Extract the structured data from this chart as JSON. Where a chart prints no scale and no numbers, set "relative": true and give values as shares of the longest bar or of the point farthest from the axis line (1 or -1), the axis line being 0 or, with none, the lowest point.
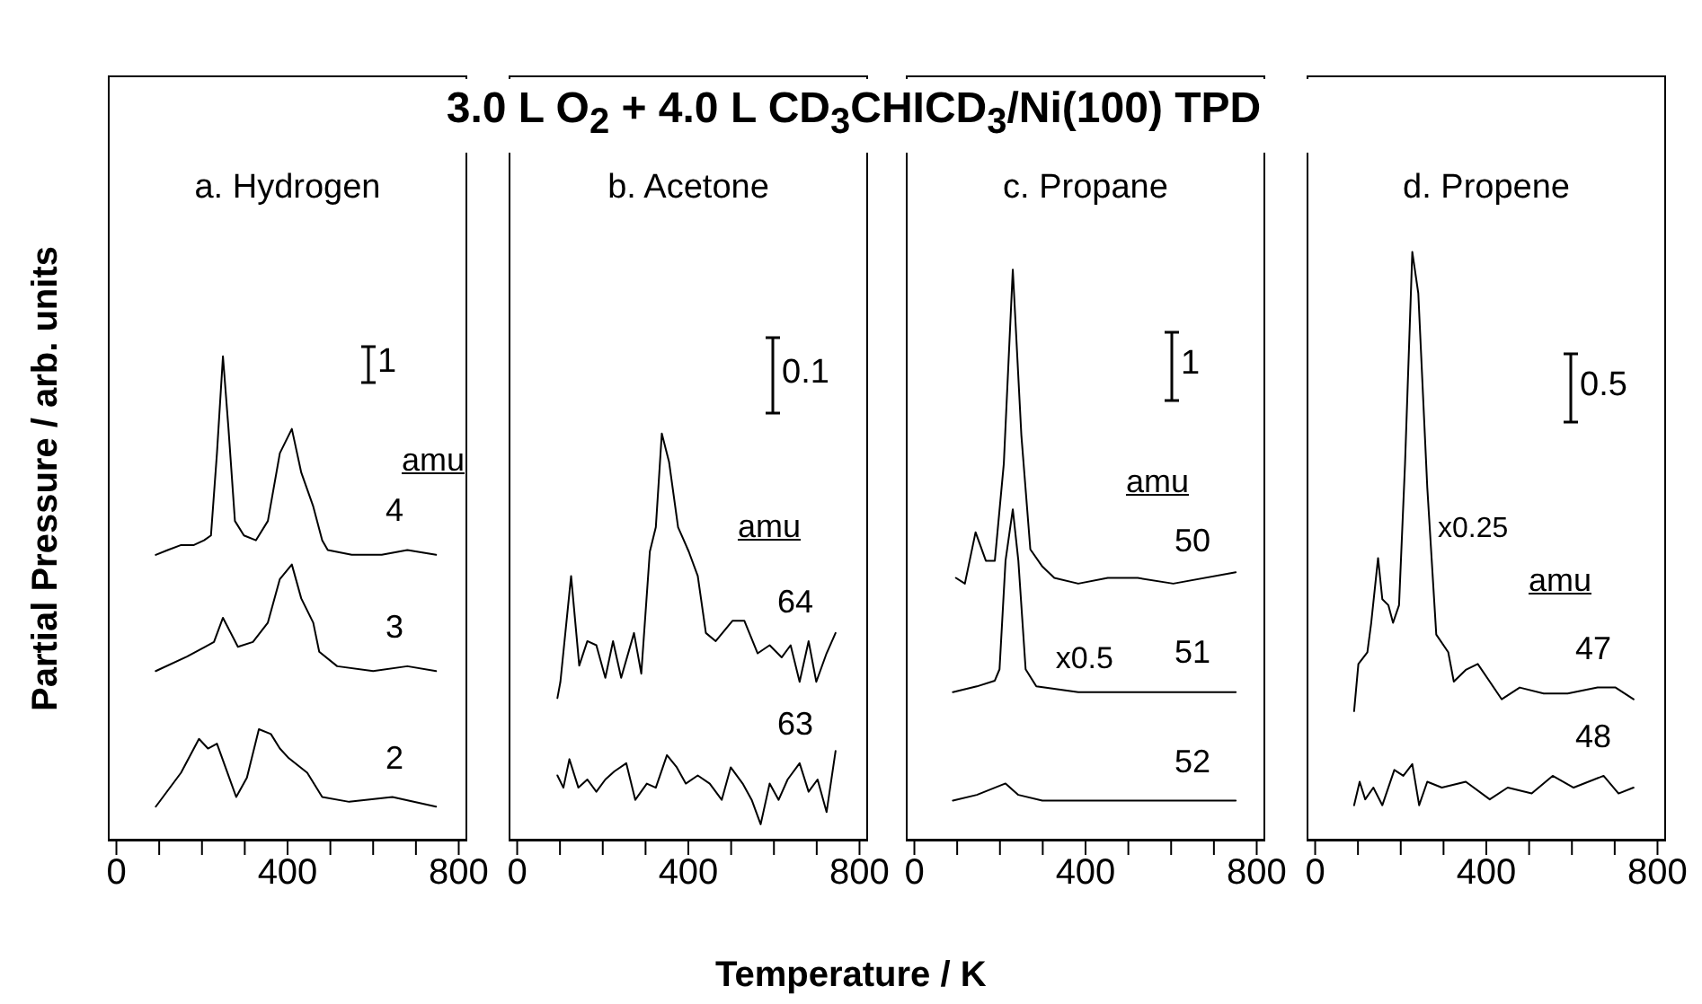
{
  "chart_data": [
    {
      "type": "line",
      "title": "a. Hydrogen",
      "ylabel": "Partial Pressure / arb. units",
      "relative": true,
      "legend": false,
      "grid": false,
      "marker": "none",
      "line_style": "solid",
      "xlim": [
        -20,
        820
      ],
      "xticks": [
        0,
        {
          "value": 100,
          "label": null
        },
        {
          "value": 200,
          "label": null
        },
        {
          "value": 300,
          "label": null
        },
        400,
        {
          "value": 500,
          "label": null
        },
        {
          "value": 600,
          "label": null
        },
        {
          "value": 700,
          "label": null
        },
        800
      ],
      "annotations": [
        "3.0 L O$_{2}$ + 4.0 L CD$_{3}$CHICD$_{3}$/Ni(100) TPD",
        "1",
        "amu"
      ],
      "series": [
        {
          "name": "4",
          "color": "#000000",
          "x": [
            92,
            120,
            150,
            180,
            205,
            221,
            235,
            249,
            262,
            277,
            298,
            326,
            354,
            382,
            410,
            432,
            460,
            481,
            494,
            550,
            620,
            680,
            747
          ],
          "values": [
            0.59,
            0.6,
            0.61,
            0.61,
            0.62,
            0.63,
            0.8,
            1.0,
            0.85,
            0.66,
            0.63,
            0.62,
            0.66,
            0.8,
            0.85,
            0.76,
            0.69,
            0.62,
            0.6,
            0.59,
            0.59,
            0.6,
            0.59
          ]
        },
        {
          "name": "3",
          "color": "#000000",
          "x": [
            92,
            165,
            207,
            228,
            249,
            284,
            319,
            354,
            382,
            410,
            432,
            460,
            474,
            516,
            600,
            680,
            747
          ],
          "values": [
            0.35,
            0.38,
            0.4,
            0.41,
            0.46,
            0.4,
            0.41,
            0.45,
            0.54,
            0.57,
            0.5,
            0.45,
            0.39,
            0.36,
            0.35,
            0.36,
            0.35
          ]
        },
        {
          "name": "2",
          "color": "#000000",
          "x": [
            92,
            151,
            193,
            214,
            235,
            280,
            305,
            333,
            361,
            382,
            403,
            446,
            481,
            544,
            645,
            747
          ],
          "values": [
            0.07,
            0.14,
            0.21,
            0.19,
            0.2,
            0.09,
            0.13,
            0.23,
            0.22,
            0.19,
            0.17,
            0.14,
            0.09,
            0.08,
            0.09,
            0.07
          ]
        }
      ]
    },
    {
      "type": "line",
      "title": "b. Acetone",
      "xlabel": "Temperature / K",
      "relative": true,
      "legend": false,
      "grid": false,
      "marker": "none",
      "line_style": "solid",
      "xlim": [
        -20,
        820
      ],
      "xticks": [
        0,
        {
          "value": 100,
          "label": null
        },
        {
          "value": 200,
          "label": null
        },
        {
          "value": 300,
          "label": null
        },
        400,
        {
          "value": 500,
          "label": null
        },
        {
          "value": 600,
          "label": null
        },
        {
          "value": 700,
          "label": null
        },
        800
      ],
      "annotations": [
        "0.1",
        "amu"
      ],
      "series": [
        {
          "name": "64",
          "color": "#000000",
          "x": [
            94,
            101,
            126,
            145,
            164,
            185,
            206,
            224,
            243,
            273,
            290,
            310,
            324,
            338,
            355,
            376,
            401,
            422,
            441,
            464,
            503,
            531,
            562,
            590,
            618,
            639,
            660,
            681,
            699,
            723,
            744
          ],
          "values": [
            0.35,
            0.39,
            0.65,
            0.43,
            0.49,
            0.48,
            0.4,
            0.49,
            0.4,
            0.51,
            0.41,
            0.71,
            0.77,
            1.0,
            0.93,
            0.77,
            0.71,
            0.65,
            0.51,
            0.49,
            0.54,
            0.54,
            0.46,
            0.48,
            0.45,
            0.48,
            0.39,
            0.49,
            0.39,
            0.46,
            0.51
          ]
        },
        {
          "name": "63",
          "color": "#000000",
          "x": [
            94,
            108,
            122,
            143,
            164,
            185,
            206,
            227,
            255,
            276,
            303,
            324,
            350,
            373,
            394,
            422,
            450,
            478,
            499,
            527,
            548,
            569,
            590,
            611,
            632,
            660,
            681,
            702,
            723,
            744
          ],
          "values": [
            0.16,
            0.13,
            0.2,
            0.13,
            0.15,
            0.12,
            0.15,
            0.17,
            0.19,
            0.1,
            0.14,
            0.13,
            0.21,
            0.18,
            0.14,
            0.16,
            0.14,
            0.1,
            0.18,
            0.14,
            0.1,
            0.04,
            0.14,
            0.1,
            0.15,
            0.19,
            0.12,
            0.15,
            0.07,
            0.22
          ]
        }
      ]
    },
    {
      "type": "line",
      "title": "c. Propane",
      "relative": true,
      "legend": false,
      "grid": false,
      "marker": "none",
      "line_style": "solid",
      "xlim": [
        -20,
        820
      ],
      "xticks": [
        0,
        {
          "value": 100,
          "label": null
        },
        {
          "value": 200,
          "label": null
        },
        {
          "value": 300,
          "label": null
        },
        400,
        {
          "value": 500,
          "label": null
        },
        {
          "value": 600,
          "label": null
        },
        {
          "value": 700,
          "label": null
        },
        800
      ],
      "annotations": [
        "1",
        "amu",
        {
          "text": "x0.5",
          "x": 330,
          "y": 0.26
        }
      ],
      "series": [
        {
          "name": "50",
          "color": "#000000",
          "x": [
            97,
            118,
            143,
            167,
            188,
            209,
            230,
            250,
            271,
            299,
            327,
            383,
            452,
            522,
            605,
            751
          ],
          "values": [
            0.46,
            0.45,
            0.54,
            0.49,
            0.49,
            0.66,
            1.0,
            0.71,
            0.51,
            0.48,
            0.46,
            0.45,
            0.46,
            0.46,
            0.45,
            0.47
          ]
        },
        {
          "name": "51",
          "color": "#000000",
          "x": [
            90,
            146,
            188,
            199,
            213,
            230,
            243,
            260,
            285,
            383,
            522,
            751
          ],
          "values": [
            0.26,
            0.27,
            0.28,
            0.3,
            0.49,
            0.58,
            0.49,
            0.3,
            0.27,
            0.26,
            0.26,
            0.26
          ]
        },
        {
          "name": "52",
          "color": "#000000",
          "x": [
            90,
            146,
            213,
            243,
            299,
            383,
            522,
            633,
            751
          ],
          "values": [
            0.07,
            0.08,
            0.1,
            0.08,
            0.07,
            0.07,
            0.07,
            0.07,
            0.07
          ]
        }
      ]
    },
    {
      "type": "line",
      "title": "d. Propene",
      "relative": true,
      "legend": false,
      "grid": false,
      "marker": "none",
      "line_style": "solid",
      "xlim": [
        -20,
        820
      ],
      "xticks": [
        0,
        {
          "value": 100,
          "label": null
        },
        {
          "value": 200,
          "label": null
        },
        {
          "value": 300,
          "label": null
        },
        400,
        {
          "value": 500,
          "label": null
        },
        {
          "value": 600,
          "label": null
        },
        {
          "value": 700,
          "label": null
        },
        800
      ],
      "annotations": [
        "0.5",
        "amu",
        "x0.25"
      ],
      "series": [
        {
          "name": "47",
          "color": "#000000",
          "x": [
            91,
            101,
            122,
            131,
            147,
            157,
            171,
            182,
            196,
            210,
            227,
            241,
            262,
            283,
            311,
            324,
            352,
            380,
            408,
            436,
            478,
            534,
            590,
            660,
            702,
            744
          ],
          "values": [
            0.22,
            0.3,
            0.32,
            0.37,
            0.48,
            0.41,
            0.4,
            0.37,
            0.4,
            0.64,
            1.0,
            0.93,
            0.6,
            0.35,
            0.32,
            0.27,
            0.29,
            0.3,
            0.27,
            0.24,
            0.26,
            0.25,
            0.25,
            0.26,
            0.26,
            0.24
          ]
        },
        {
          "name": "48",
          "color": "#000000",
          "x": [
            91,
            104,
            117,
            136,
            157,
            185,
            206,
            227,
            243,
            262,
            296,
            352,
            408,
            450,
            506,
            555,
            604,
            674,
            709,
            744
          ],
          "values": [
            0.06,
            0.1,
            0.07,
            0.09,
            0.06,
            0.12,
            0.11,
            0.13,
            0.06,
            0.1,
            0.09,
            0.1,
            0.07,
            0.09,
            0.08,
            0.11,
            0.09,
            0.11,
            0.08,
            0.09
          ]
        }
      ]
    }
  ]
}
